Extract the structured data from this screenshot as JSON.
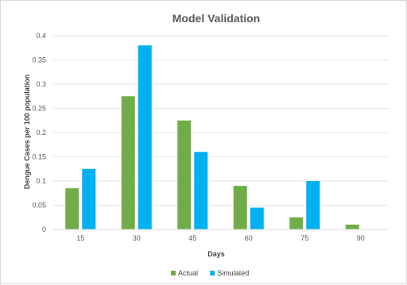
{
  "chart_data": {
    "type": "bar",
    "title": "Model Validation",
    "xlabel": "Days",
    "ylabel": "Dengue Cases per 100 population",
    "categories": [
      "15",
      "30",
      "45",
      "60",
      "75",
      "90"
    ],
    "series": [
      {
        "name": "Actual",
        "color": "#70ad47",
        "values": [
          0.085,
          0.275,
          0.225,
          0.09,
          0.025,
          0.01
        ]
      },
      {
        "name": "Simulated",
        "color": "#00b0f0",
        "values": [
          0.125,
          0.38,
          0.16,
          0.045,
          0.1,
          0
        ]
      }
    ],
    "ylim": [
      0,
      0.4
    ],
    "yticks": [
      "0",
      "0.05",
      "0.1",
      "0.15",
      "0.2",
      "0.25",
      "0.3",
      "0.35",
      "0.4"
    ],
    "grid": true,
    "legend_position": "bottom"
  }
}
